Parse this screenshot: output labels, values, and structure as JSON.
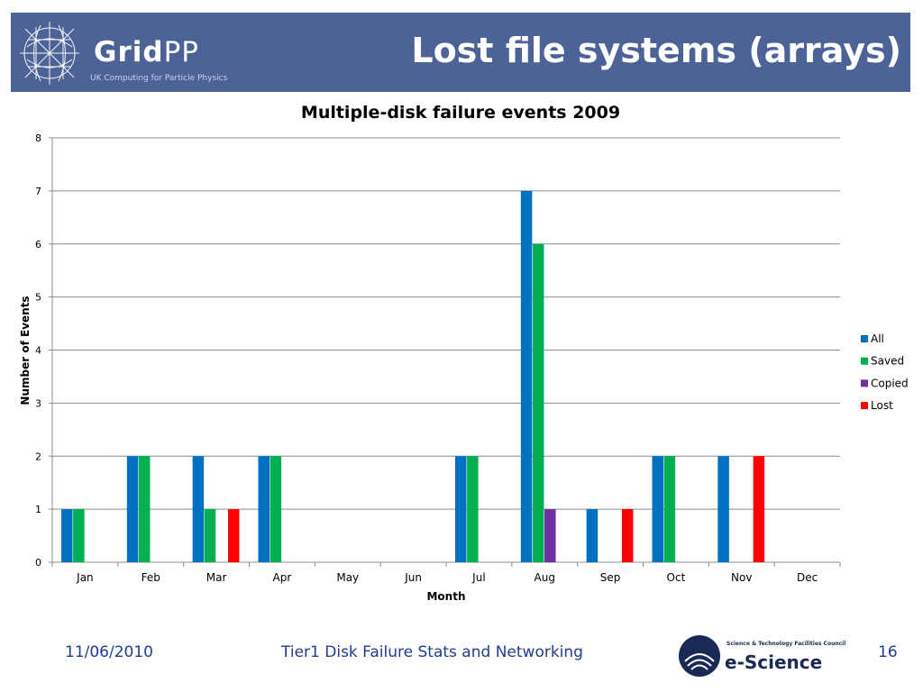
{
  "header": {
    "logo_main": "Grid",
    "logo_pp": "PP",
    "logo_subtitle": "UK Computing for Particle Physics",
    "title": "Lost file systems (arrays)",
    "background": "#4d6296"
  },
  "chart_data": {
    "type": "bar",
    "title": "Multiple-disk failure events 2009",
    "xlabel": "Month",
    "ylabel": "Number of Events",
    "ylim": [
      0,
      8
    ],
    "yticks": [
      0,
      1,
      2,
      3,
      4,
      5,
      6,
      7,
      8
    ],
    "grid": true,
    "legend_position": "right",
    "categories": [
      "Jan",
      "Feb",
      "Mar",
      "Apr",
      "May",
      "Jun",
      "Jul",
      "Aug",
      "Sep",
      "Oct",
      "Nov",
      "Dec"
    ],
    "series": [
      {
        "name": "All",
        "color": "#0070c0",
        "values": [
          1,
          2,
          2,
          2,
          0,
          0,
          2,
          7,
          1,
          2,
          2,
          0
        ]
      },
      {
        "name": "Saved",
        "color": "#00b050",
        "values": [
          1,
          2,
          1,
          2,
          0,
          0,
          2,
          6,
          0,
          2,
          0,
          0
        ]
      },
      {
        "name": "Copied",
        "color": "#7030a0",
        "values": [
          0,
          0,
          0,
          0,
          0,
          0,
          0,
          1,
          0,
          0,
          0,
          0
        ]
      },
      {
        "name": "Lost",
        "color": "#ff0000",
        "values": [
          0,
          0,
          1,
          0,
          0,
          0,
          0,
          0,
          1,
          0,
          2,
          0
        ]
      }
    ]
  },
  "footer": {
    "date": "11/06/2010",
    "text": "Tier1 Disk Failure Stats and Networking",
    "org_small": "Science & Technology Facilities Council",
    "org_big": "e-Science",
    "page": "16"
  }
}
